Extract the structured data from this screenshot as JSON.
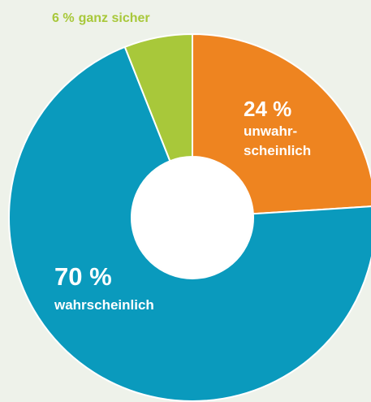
{
  "chart_data": {
    "type": "donut",
    "categories": [
      [
        "unwahr-",
        "scheinlich"
      ],
      [
        "wahrscheinlich"
      ],
      [
        "ganz sicher"
      ]
    ],
    "values": [
      24,
      70,
      6
    ],
    "value_labels": [
      "24 %",
      "70 %",
      "6 %"
    ],
    "colors": [
      "#ee8420",
      "#0a9abd",
      "#a8c83a"
    ]
  }
}
